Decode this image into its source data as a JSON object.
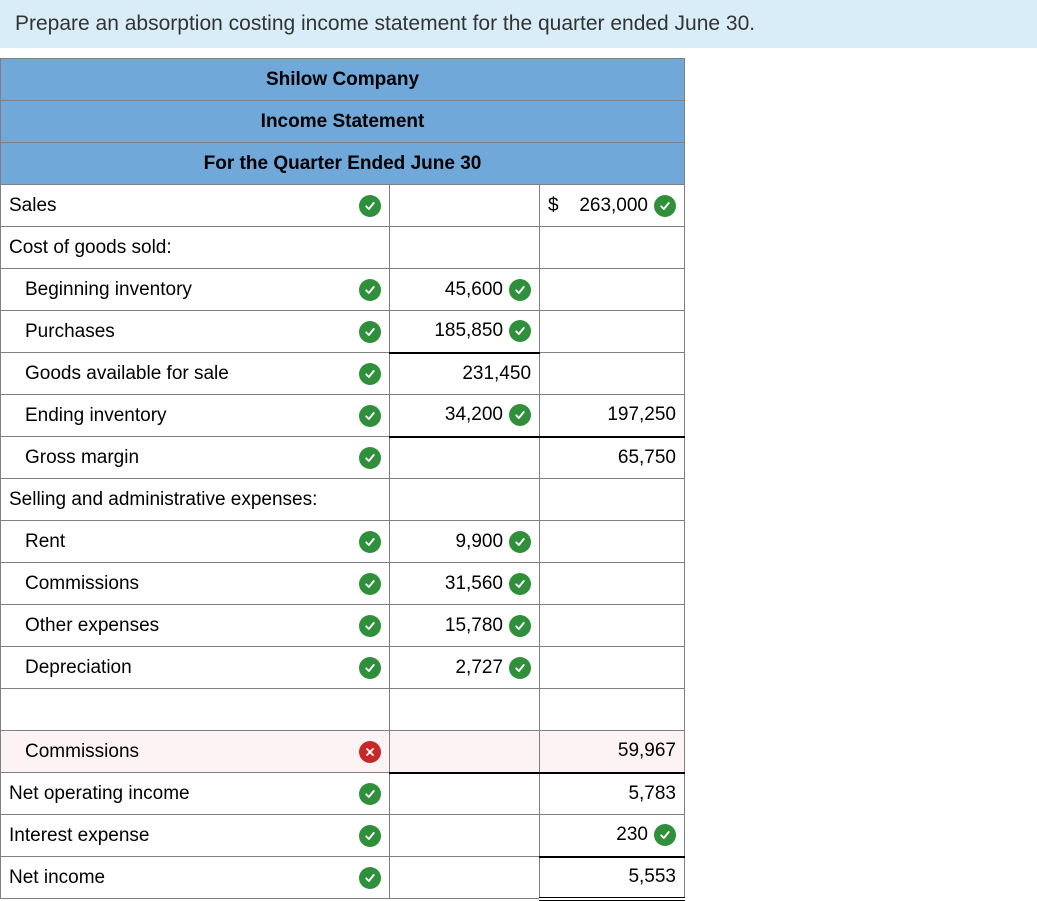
{
  "prompt": "Prepare an absorption costing income statement for the quarter ended June 30.",
  "headers": {
    "company": "Shilow Company",
    "title": "Income Statement",
    "period": "For the Quarter Ended June 30"
  },
  "colors": {
    "prompt_bg": "#d8edf8",
    "header_bg": "#6fa8d9",
    "border": "#808080",
    "ok": "#2f8f3a",
    "err": "#c62828",
    "error_row_bg": "#fdf3f4"
  },
  "rows": [
    {
      "label": "Sales",
      "indent": 0,
      "label_status": "ok",
      "mid": "",
      "mid_status": null,
      "right": "263,000",
      "right_status": "ok",
      "right_prefix": "$",
      "underline_mid": false,
      "underline_right": false,
      "double_right": false
    },
    {
      "label": "Cost of goods sold:",
      "indent": 0,
      "label_status": null,
      "mid": "",
      "mid_status": null,
      "right": "",
      "right_status": null,
      "underline_mid": false,
      "underline_right": false,
      "double_right": false
    },
    {
      "label": "Beginning inventory",
      "indent": 1,
      "label_status": "ok",
      "mid": "45,600",
      "mid_status": "ok",
      "right": "",
      "right_status": null,
      "underline_mid": false,
      "underline_right": false,
      "double_right": false
    },
    {
      "label": "Purchases",
      "indent": 1,
      "label_status": "ok",
      "mid": "185,850",
      "mid_status": "ok",
      "right": "",
      "right_status": null,
      "underline_mid": true,
      "underline_right": false,
      "double_right": false
    },
    {
      "label": "Goods available for sale",
      "indent": 1,
      "label_status": "ok",
      "mid": "231,450",
      "mid_status": null,
      "right": "",
      "right_status": null,
      "underline_mid": false,
      "underline_right": false,
      "double_right": false
    },
    {
      "label": "Ending inventory",
      "indent": 1,
      "label_status": "ok",
      "mid": "34,200",
      "mid_status": "ok",
      "right": "197,250",
      "right_status": null,
      "underline_mid": true,
      "underline_right": true,
      "double_right": false
    },
    {
      "label": "Gross margin",
      "indent": 1,
      "label_status": "ok",
      "mid": "",
      "mid_status": null,
      "right": "65,750",
      "right_status": null,
      "underline_mid": false,
      "underline_right": false,
      "double_right": false
    },
    {
      "label": "Selling and administrative expenses:",
      "indent": 0,
      "label_status": null,
      "mid": "",
      "mid_status": null,
      "right": "",
      "right_status": null,
      "underline_mid": false,
      "underline_right": false,
      "double_right": false
    },
    {
      "label": "Rent",
      "indent": 1,
      "label_status": "ok",
      "mid": "9,900",
      "mid_status": "ok",
      "right": "",
      "right_status": null,
      "underline_mid": false,
      "underline_right": false,
      "double_right": false
    },
    {
      "label": "Commissions",
      "indent": 1,
      "label_status": "ok",
      "mid": "31,560",
      "mid_status": "ok",
      "right": "",
      "right_status": null,
      "underline_mid": false,
      "underline_right": false,
      "double_right": false
    },
    {
      "label": "Other expenses",
      "indent": 1,
      "label_status": "ok",
      "mid": "15,780",
      "mid_status": "ok",
      "right": "",
      "right_status": null,
      "underline_mid": false,
      "underline_right": false,
      "double_right": false
    },
    {
      "label": "Depreciation",
      "indent": 1,
      "label_status": "ok",
      "mid": "2,727",
      "mid_status": "ok",
      "right": "",
      "right_status": null,
      "underline_mid": false,
      "underline_right": false,
      "double_right": false
    },
    {
      "label": "",
      "indent": 1,
      "label_status": null,
      "mid": "",
      "mid_status": null,
      "right": "",
      "right_status": null,
      "underline_mid": false,
      "underline_right": false,
      "double_right": false
    },
    {
      "label": "Commissions",
      "indent": 1,
      "label_status": "err",
      "mid": "",
      "mid_status": null,
      "right": "59,967",
      "right_status": null,
      "row_error": true,
      "underline_mid": true,
      "underline_right": true,
      "double_right": false
    },
    {
      "label": "Net operating income",
      "indent": 0,
      "label_status": "ok",
      "mid": "",
      "mid_status": null,
      "right": "5,783",
      "right_status": null,
      "underline_mid": false,
      "underline_right": false,
      "double_right": false
    },
    {
      "label": "Interest expense",
      "indent": 0,
      "label_status": "ok",
      "mid": "",
      "mid_status": null,
      "right": "230",
      "right_status": "ok",
      "underline_mid": false,
      "underline_right": true,
      "double_right": false
    },
    {
      "label": "Net income",
      "indent": 0,
      "label_status": "ok",
      "mid": "",
      "mid_status": null,
      "right": "5,553",
      "right_status": null,
      "underline_mid": false,
      "underline_right": false,
      "double_right": true
    }
  ]
}
